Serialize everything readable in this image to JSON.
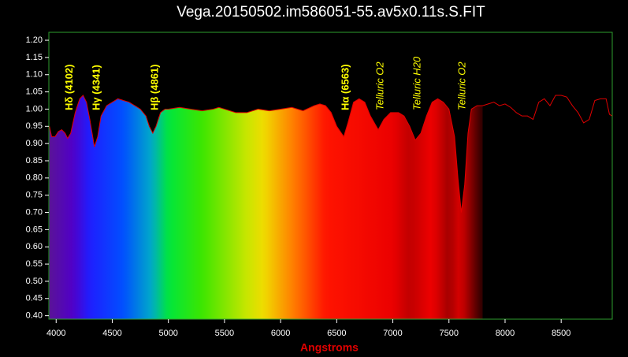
{
  "chart_data": {
    "type": "line",
    "title": "Vega.20150502.im586051-55.av5x0.11s.S.FIT",
    "x_label": "Angstroms",
    "color": "#e00000",
    "fill_range": [
      3935,
      7800
    ],
    "x": [
      3940,
      3960,
      3990,
      4020,
      4050,
      4080,
      4102,
      4130,
      4170,
      4210,
      4240,
      4270,
      4300,
      4341,
      4370,
      4400,
      4450,
      4500,
      4550,
      4600,
      4650,
      4700,
      4750,
      4800,
      4830,
      4861,
      4890,
      4930,
      4970,
      5000,
      5100,
      5200,
      5300,
      5400,
      5450,
      5500,
      5600,
      5700,
      5800,
      5900,
      6000,
      6100,
      6200,
      6300,
      6350,
      6400,
      6450,
      6500,
      6563,
      6600,
      6650,
      6700,
      6750,
      6800,
      6870,
      6920,
      6980,
      7050,
      7100,
      7150,
      7200,
      7250,
      7300,
      7350,
      7400,
      7450,
      7500,
      7550,
      7580,
      7610,
      7640,
      7670,
      7700,
      7750,
      7800,
      7850,
      7900,
      7950,
      8000,
      8050,
      8100,
      8150,
      8200,
      8250,
      8300,
      8350,
      8400,
      8450,
      8500,
      8550,
      8600,
      8650,
      8700,
      8750,
      8800,
      8850,
      8900,
      8930,
      8955
    ],
    "values": [
      0.95,
      0.92,
      0.92,
      0.935,
      0.94,
      0.93,
      0.915,
      0.93,
      0.99,
      1.03,
      1.04,
      1.02,
      0.97,
      0.89,
      0.92,
      0.98,
      1.01,
      1.02,
      1.03,
      1.025,
      1.02,
      1.01,
      1.0,
      0.98,
      0.95,
      0.93,
      0.95,
      0.99,
      1.0,
      1.0,
      1.005,
      1.0,
      0.995,
      1.0,
      1.005,
      1.0,
      0.99,
      0.99,
      1.0,
      0.995,
      1.0,
      1.005,
      0.995,
      1.01,
      1.015,
      1.01,
      0.99,
      0.95,
      0.92,
      0.96,
      1.02,
      1.03,
      1.02,
      0.98,
      0.94,
      0.97,
      0.99,
      0.99,
      0.98,
      0.95,
      0.91,
      0.93,
      0.98,
      1.02,
      1.03,
      1.02,
      1.0,
      0.92,
      0.8,
      0.7,
      0.78,
      0.93,
      1.0,
      1.01,
      1.01,
      1.015,
      1.02,
      1.01,
      1.015,
      1.005,
      0.99,
      0.98,
      0.98,
      0.97,
      1.02,
      1.03,
      1.01,
      1.04,
      1.04,
      1.035,
      1.01,
      0.99,
      0.96,
      0.97,
      1.025,
      1.03,
      1.03,
      0.985,
      0.98
    ],
    "xlim": [
      3935,
      8955
    ],
    "ylim": [
      0.39,
      1.223
    ],
    "xticks": [
      4000,
      4500,
      5000,
      5500,
      6000,
      6500,
      7000,
      7500,
      8000,
      8500
    ],
    "yticks": [
      {
        "value": 0.4,
        "label": "0.40"
      },
      {
        "value": 0.45,
        "label": "0.45"
      },
      {
        "value": 0.5,
        "label": "0.50"
      },
      {
        "value": 0.55,
        "label": "0.55"
      },
      {
        "value": 0.6,
        "label": "0.60"
      },
      {
        "value": 0.65,
        "label": "0.65"
      },
      {
        "value": 0.7,
        "label": "0.70"
      },
      {
        "value": 0.75,
        "label": "0.75"
      },
      {
        "value": 0.8,
        "label": "0.80"
      },
      {
        "value": 0.85,
        "label": "0.85"
      },
      {
        "value": 0.9,
        "label": "0.90"
      },
      {
        "value": 0.95,
        "label": "0.95"
      },
      {
        "value": 1.0,
        "label": "1.00"
      },
      {
        "value": 1.05,
        "label": "1.05"
      },
      {
        "value": 1.1,
        "label": "1.10"
      },
      {
        "value": 1.15,
        "label": "1.15"
      },
      {
        "value": 1.2,
        "label": "1.20"
      }
    ],
    "annotations": [
      {
        "text": "Hδ (4102)",
        "x": 4102,
        "style": "bold"
      },
      {
        "text": "Hγ (4341)",
        "x": 4341,
        "style": "bold"
      },
      {
        "text": "Hβ (4861)",
        "x": 4861,
        "style": "bold"
      },
      {
        "text": "Hα (6563)",
        "x": 6563,
        "style": "bold"
      },
      {
        "text": "Telluric O2",
        "x": 6870,
        "style": "italic"
      },
      {
        "text": "Telluric H20",
        "x": 7200,
        "style": "italic"
      },
      {
        "text": "Telluric O2",
        "x": 7600,
        "style": "italic"
      }
    ]
  }
}
